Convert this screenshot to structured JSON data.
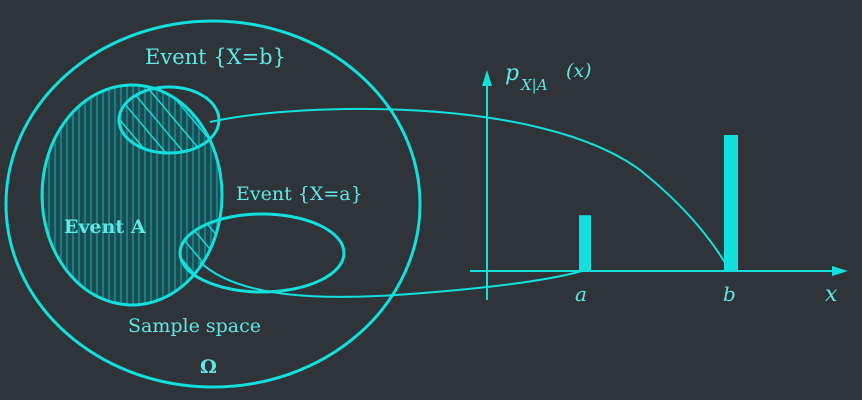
{
  "colors": {
    "background": "#2f3439",
    "ink": "#11e0dd",
    "text": "#5ee9e6",
    "hatch": "#14bfbf"
  },
  "diagram": {
    "event_b_label": "Event {X=b}",
    "event_a_x_label": "Event {X=a}",
    "event_A_label": "Event A",
    "sample_space_label": "Sample space",
    "omega_label": "Ω"
  },
  "plot": {
    "y_axis_label": "p_{X|A}(x)",
    "y_axis_label_main": "p",
    "y_axis_label_sub": "X|A",
    "y_axis_label_arg": "(x)",
    "x_axis_label": "x",
    "x_ticks": [
      "a",
      "b"
    ],
    "bars": [
      {
        "x": "a",
        "value": 0.41
      },
      {
        "x": "b",
        "value": 1.0
      }
    ]
  }
}
